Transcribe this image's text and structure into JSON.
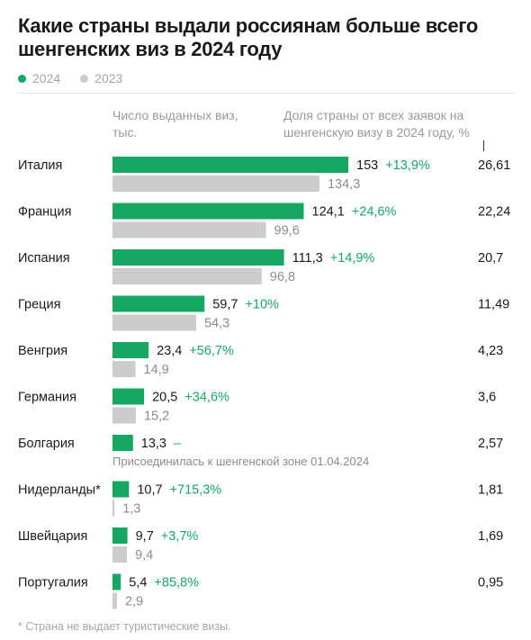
{
  "title": "Какие страны выдали россиянам больше всего шенгенских виз в 2024 году",
  "legend": [
    {
      "label": "2024",
      "color": "#16a862"
    },
    {
      "label": "2023",
      "color": "#cccccc"
    }
  ],
  "column_headers": {
    "visas": "Число выданных виз, тыс.",
    "share": "Доля страны от всех заявок на шенгенскую визу в 2024 году, %"
  },
  "colors": {
    "series_2024": "#16a862",
    "series_2023": "#cccccc",
    "change_text": "#16a862"
  },
  "chart_data": {
    "type": "bar",
    "orientation": "horizontal",
    "categories": [
      "Италия",
      "Франция",
      "Испания",
      "Греция",
      "Венгрия",
      "Германия",
      "Болгария",
      "Нидерланды*",
      "Швейцария",
      "Португалия"
    ],
    "series": [
      {
        "name": "2024",
        "values": [
          153,
          124.1,
          111.3,
          59.7,
          23.4,
          20.5,
          13.3,
          10.7,
          9.7,
          5.4
        ],
        "labels": [
          "153",
          "124,1",
          "111,3",
          "59,7",
          "23,4",
          "20,5",
          "13,3",
          "10,7",
          "9,7",
          "5,4"
        ]
      },
      {
        "name": "2023",
        "values": [
          134.3,
          99.6,
          96.8,
          54.3,
          14.9,
          15.2,
          null,
          1.3,
          9.4,
          2.9
        ],
        "labels": [
          "134,3",
          "99,6",
          "96,8",
          "54,3",
          "14,9",
          "15,2",
          "",
          "1,3",
          "9,4",
          "2,9"
        ]
      }
    ],
    "change": [
      "+13,9%",
      "+24,6%",
      "+14,9%",
      "+10%",
      "+56,7%",
      "+34,6%",
      "–",
      "+715,3%",
      "+3,7%",
      "+85,8%"
    ],
    "share": [
      "26,61",
      "22,24",
      "20,7",
      "11,49",
      "4,23",
      "3,6",
      "2,57",
      "1,81",
      "1,69",
      "0,95"
    ],
    "annotations": {
      "Болгария": "Присоединилась к шенгенской зоне 01.04.2024"
    },
    "xlim": [
      0,
      153
    ],
    "grid": false,
    "legend": "top-left"
  },
  "footnote": "* Страна не выдает туристические визы."
}
